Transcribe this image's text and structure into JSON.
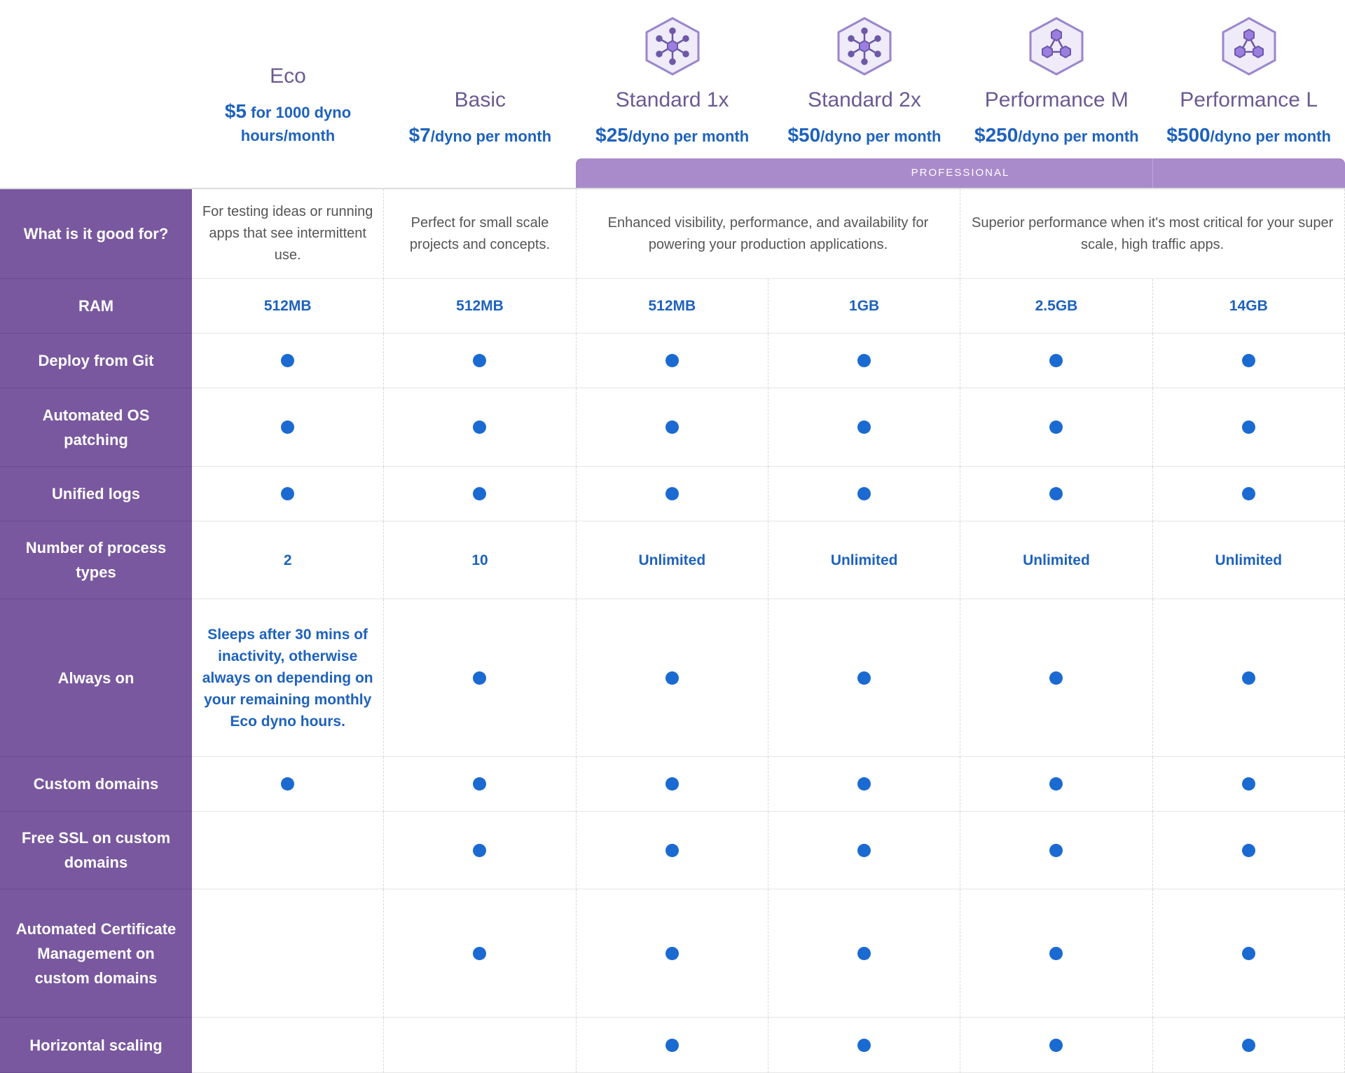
{
  "colors": {
    "label_bg": "#79589f",
    "accent_blue": "#1e62bd",
    "plan_title": "#6b5a92",
    "professional_bar": "#a98bcb"
  },
  "plans": [
    {
      "name": "Eco",
      "price": "$5",
      "unit": " for 1000 dyno hours/month",
      "icon": ""
    },
    {
      "name": "Basic",
      "price": "$7",
      "unit": "/dyno per month",
      "icon": ""
    },
    {
      "name": "Standard 1x",
      "price": "$25",
      "unit": "/dyno per month",
      "icon": "hexagon-network-icon"
    },
    {
      "name": "Standard 2x",
      "price": "$50",
      "unit": "/dyno per month",
      "icon": "hexagon-network-icon"
    },
    {
      "name": "Performance M",
      "price": "$250",
      "unit": "/dyno per month",
      "icon": "hexagon-cluster-icon"
    },
    {
      "name": "Performance L",
      "price": "$500",
      "unit": "/dyno per month",
      "icon": "hexagon-cluster-icon"
    }
  ],
  "professional_label": "PROFESSIONAL",
  "rows": [
    {
      "label": "What is it good for?",
      "cells": [
        {
          "text": "For testing ideas or running apps that see intermittent use.",
          "span": 1,
          "type": "desc"
        },
        {
          "text": "Perfect for small scale projects and concepts.",
          "span": 1,
          "type": "desc"
        },
        {
          "text": "Enhanced visibility, performance, and availability for powering your production applications.",
          "span": 2,
          "type": "desc"
        },
        {
          "text": "Superior performance when it's most critical for your super scale, high traffic apps.",
          "span": 2,
          "type": "desc"
        }
      ]
    },
    {
      "label": "RAM",
      "cells": [
        {
          "text": "512MB"
        },
        {
          "text": "512MB"
        },
        {
          "text": "512MB"
        },
        {
          "text": "1GB"
        },
        {
          "text": "2.5GB"
        },
        {
          "text": "14GB"
        }
      ]
    },
    {
      "label": "Deploy from Git",
      "cells": [
        {
          "dot": true
        },
        {
          "dot": true
        },
        {
          "dot": true
        },
        {
          "dot": true
        },
        {
          "dot": true
        },
        {
          "dot": true
        }
      ]
    },
    {
      "label": "Automated OS patching",
      "cells": [
        {
          "dot": true
        },
        {
          "dot": true
        },
        {
          "dot": true
        },
        {
          "dot": true
        },
        {
          "dot": true
        },
        {
          "dot": true
        }
      ]
    },
    {
      "label": "Unified logs",
      "cells": [
        {
          "dot": true
        },
        {
          "dot": true
        },
        {
          "dot": true
        },
        {
          "dot": true
        },
        {
          "dot": true
        },
        {
          "dot": true
        }
      ]
    },
    {
      "label": "Number of process types",
      "cells": [
        {
          "text": "2"
        },
        {
          "text": "10"
        },
        {
          "text": "Unlimited"
        },
        {
          "text": "Unlimited"
        },
        {
          "text": "Unlimited"
        },
        {
          "text": "Unlimited"
        }
      ]
    },
    {
      "label": "Always on",
      "cells": [
        {
          "text": "Sleeps after 30 mins of inactivity, otherwise always on depending on your remaining monthly Eco dyno hours."
        },
        {
          "dot": true
        },
        {
          "dot": true
        },
        {
          "dot": true
        },
        {
          "dot": true
        },
        {
          "dot": true
        }
      ]
    },
    {
      "label": "Custom domains",
      "cells": [
        {
          "dot": true
        },
        {
          "dot": true
        },
        {
          "dot": true
        },
        {
          "dot": true
        },
        {
          "dot": true
        },
        {
          "dot": true
        }
      ]
    },
    {
      "label": "Free SSL on custom domains",
      "cells": [
        {},
        {
          "dot": true
        },
        {
          "dot": true
        },
        {
          "dot": true
        },
        {
          "dot": true
        },
        {
          "dot": true
        }
      ]
    },
    {
      "label": "Automated Certificate Management on custom domains",
      "cells": [
        {},
        {
          "dot": true
        },
        {
          "dot": true
        },
        {
          "dot": true
        },
        {
          "dot": true
        },
        {
          "dot": true
        }
      ]
    },
    {
      "label": "Horizontal scaling",
      "cells": [
        {},
        {},
        {
          "dot": true
        },
        {
          "dot": true
        },
        {
          "dot": true
        },
        {
          "dot": true
        }
      ]
    }
  ]
}
